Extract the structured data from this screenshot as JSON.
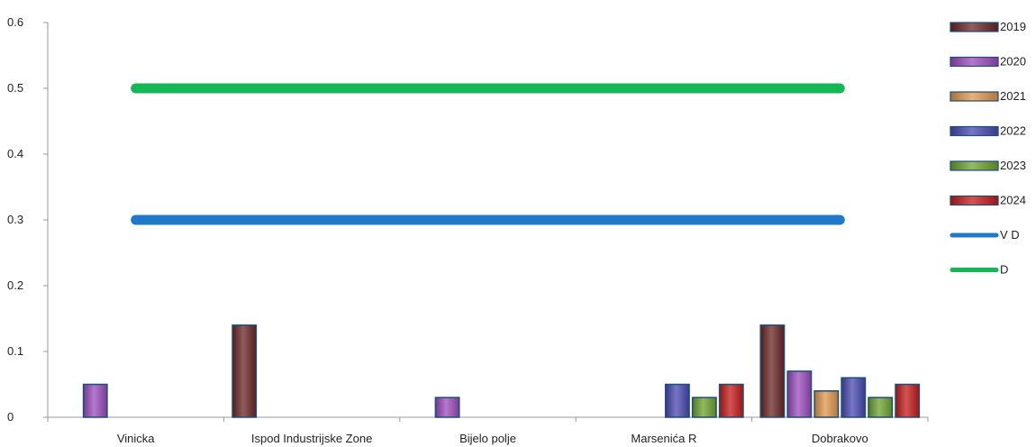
{
  "chart_data": {
    "type": "bar",
    "categories": [
      "Vinicka",
      "Ispod Industrijske Zone",
      "Bijelo polje",
      "Marsenića R",
      "Dobrakovo"
    ],
    "series": [
      {
        "name": "2019",
        "values": [
          null,
          0.14,
          null,
          null,
          0.14
        ],
        "color": "#6b2525"
      },
      {
        "name": "2020",
        "values": [
          0.05,
          null,
          0.03,
          null,
          0.07
        ],
        "color": "#9b4bbd"
      },
      {
        "name": "2021",
        "values": [
          null,
          null,
          null,
          null,
          0.04
        ],
        "color": "#e0954f"
      },
      {
        "name": "2022",
        "values": [
          null,
          null,
          null,
          0.05,
          0.06
        ],
        "color": "#4848b0"
      },
      {
        "name": "2023",
        "values": [
          null,
          null,
          null,
          0.03,
          0.03
        ],
        "color": "#6ea12f"
      },
      {
        "name": "2024",
        "values": [
          null,
          null,
          null,
          0.05,
          0.05
        ],
        "color": "#c41a1a"
      }
    ],
    "lines": [
      {
        "name": "V D",
        "value": 0.3,
        "color": "#1f78c8"
      },
      {
        "name": "D",
        "value": 0.5,
        "color": "#13b855"
      }
    ],
    "ylim": [
      0,
      0.6
    ],
    "yticks": [
      "0",
      "0.1",
      "0.2",
      "0.3",
      "0.4",
      "0.5",
      "0.6"
    ],
    "grid": false,
    "legend_position": "right"
  }
}
